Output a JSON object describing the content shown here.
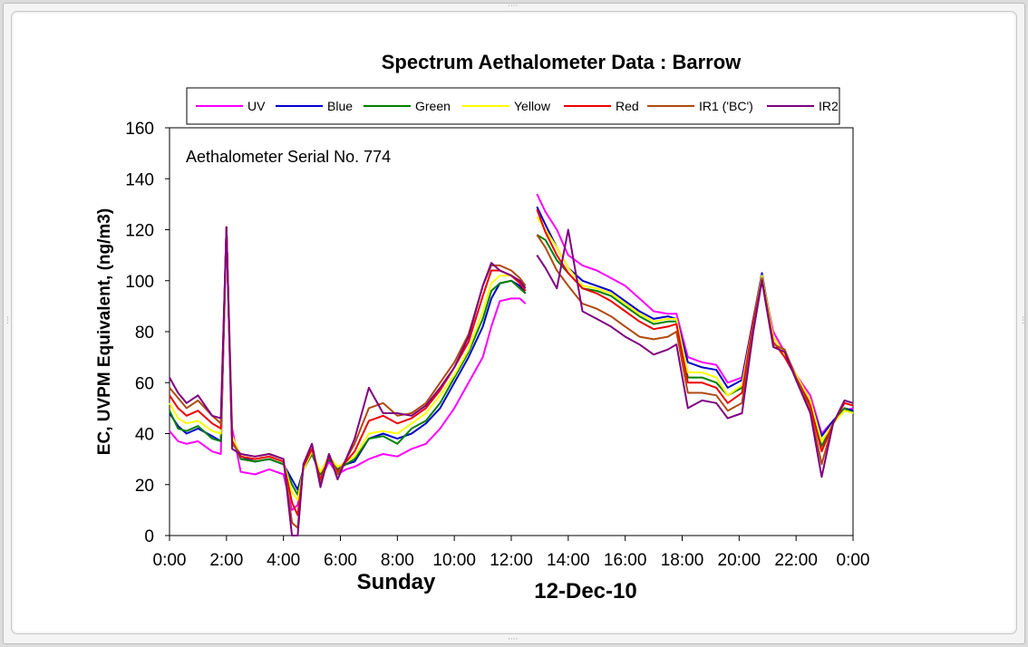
{
  "chart_data": {
    "type": "line",
    "title": "Spectrum Aethalometer Data  :  Barrow",
    "ylabel": "EC, UVPM Equivalent, (ng/m3)",
    "xlabel_day": "Sunday",
    "xlabel_date": "12-Dec-10",
    "annotation": "Aethalometer  Serial No. 774",
    "ylim": [
      0,
      160
    ],
    "yticks": [
      "0",
      "20",
      "40",
      "60",
      "80",
      "100",
      "120",
      "140",
      "160"
    ],
    "xlim": [
      0,
      24
    ],
    "xticks": [
      "0:00",
      "2:00",
      "4:00",
      "6:00",
      "8:00",
      "10:00",
      "12:00",
      "14:00",
      "16:00",
      "18:00",
      "20:00",
      "22:00",
      "0:00"
    ],
    "legend_position": "top",
    "x": [
      0,
      0.3,
      0.6,
      1.0,
      1.5,
      1.8,
      2.0,
      2.2,
      2.5,
      3.0,
      3.5,
      4.0,
      4.3,
      4.5,
      4.7,
      5.0,
      5.3,
      5.6,
      5.9,
      6.2,
      6.5,
      7.0,
      7.5,
      8.0,
      8.5,
      9.0,
      9.5,
      10.0,
      10.5,
      11.0,
      11.3,
      11.6,
      12.0,
      12.3,
      12.5,
      null,
      12.9,
      13.2,
      13.6,
      14.0,
      14.5,
      15.0,
      15.5,
      16.0,
      16.5,
      17.0,
      17.5,
      17.8,
      18.2,
      18.7,
      19.2,
      19.6,
      20.1,
      20.5,
      20.8,
      21.2,
      21.6,
      22.0,
      22.5,
      22.9,
      23.3,
      23.7,
      24.0
    ],
    "series": [
      {
        "name": "UV",
        "color": "#ff00ff",
        "values": [
          41,
          37,
          36,
          37,
          33,
          32,
          121,
          42,
          25,
          24,
          26,
          24,
          10,
          12,
          27,
          33,
          22,
          29,
          24,
          26,
          27,
          30,
          32,
          31,
          34,
          36,
          42,
          50,
          60,
          70,
          82,
          92,
          93,
          93,
          91,
          null,
          134,
          127,
          120,
          110,
          106,
          104,
          101,
          98,
          93,
          88,
          87,
          87,
          70,
          68,
          67,
          60,
          62,
          85,
          101,
          80,
          72,
          63,
          55,
          40,
          45,
          49,
          50
        ]
      },
      {
        "name": "Blue",
        "color": "#0000cc",
        "values": [
          48,
          43,
          40,
          42,
          39,
          37,
          121,
          38,
          31,
          29,
          30,
          28,
          22,
          18,
          26,
          32,
          24,
          30,
          26,
          28,
          29,
          38,
          40,
          38,
          40,
          44,
          50,
          60,
          70,
          82,
          93,
          99,
          100,
          98,
          95,
          null,
          129,
          122,
          113,
          105,
          100,
          98,
          96,
          92,
          88,
          85,
          86,
          85,
          68,
          66,
          65,
          58,
          61,
          85,
          103,
          78,
          71,
          63,
          53,
          39,
          45,
          50,
          49
        ]
      },
      {
        "name": "Green",
        "color": "#008000",
        "values": [
          49,
          42,
          41,
          43,
          38,
          37,
          121,
          38,
          30,
          29,
          30,
          28,
          20,
          16,
          26,
          32,
          24,
          30,
          26,
          28,
          30,
          38,
          39,
          36,
          42,
          45,
          52,
          62,
          72,
          85,
          96,
          99,
          100,
          97,
          95,
          null,
          118,
          116,
          108,
          103,
          97,
          96,
          94,
          90,
          86,
          83,
          84,
          84,
          62,
          62,
          60,
          55,
          58,
          84,
          102,
          78,
          71,
          62,
          52,
          35,
          44,
          50,
          48
        ]
      },
      {
        "name": "Yellow",
        "color": "#ffff00",
        "values": [
          52,
          46,
          44,
          45,
          41,
          40,
          121,
          39,
          31,
          30,
          31,
          29,
          17,
          14,
          26,
          33,
          25,
          31,
          27,
          29,
          31,
          40,
          41,
          40,
          44,
          48,
          55,
          63,
          73,
          88,
          99,
          102,
          102,
          100,
          97,
          null,
          125,
          120,
          113,
          105,
          98,
          97,
          95,
          91,
          87,
          84,
          85,
          85,
          64,
          64,
          62,
          55,
          59,
          84,
          102,
          78,
          71,
          63,
          53,
          37,
          44,
          49,
          48
        ]
      },
      {
        "name": "Red",
        "color": "#ee0000",
        "values": [
          55,
          50,
          47,
          49,
          44,
          42,
          121,
          37,
          31,
          30,
          31,
          29,
          13,
          8,
          27,
          34,
          22,
          31,
          25,
          29,
          33,
          45,
          47,
          44,
          46,
          50,
          57,
          66,
          76,
          94,
          104,
          104,
          102,
          99,
          96,
          null,
          128,
          119,
          110,
          103,
          97,
          95,
          92,
          88,
          84,
          81,
          82,
          83,
          60,
          60,
          58,
          52,
          56,
          84,
          101,
          76,
          70,
          62,
          51,
          33,
          44,
          52,
          51
        ]
      },
      {
        "name": "IR1 ('BC')",
        "color": "#b04a0f",
        "values": [
          58,
          54,
          50,
          53,
          47,
          44,
          121,
          36,
          32,
          31,
          32,
          30,
          5,
          3,
          28,
          36,
          20,
          32,
          24,
          30,
          36,
          50,
          52,
          47,
          48,
          52,
          60,
          68,
          79,
          98,
          106,
          106,
          104,
          101,
          98,
          null,
          118,
          113,
          104,
          98,
          91,
          89,
          86,
          82,
          78,
          77,
          78,
          80,
          56,
          56,
          55,
          49,
          52,
          82,
          101,
          75,
          73,
          62,
          49,
          28,
          44,
          53,
          52
        ]
      },
      {
        "name": "IR2",
        "color": "#800080",
        "values": [
          62,
          56,
          52,
          55,
          47,
          46,
          121,
          34,
          32,
          31,
          32,
          30,
          0,
          0,
          28,
          36,
          19,
          32,
          22,
          30,
          38,
          58,
          48,
          48,
          47,
          51,
          58,
          66,
          78,
          98,
          107,
          104,
          102,
          100,
          97,
          null,
          110,
          105,
          97,
          120,
          88,
          85,
          82,
          78,
          75,
          71,
          73,
          75,
          50,
          53,
          52,
          46,
          48,
          80,
          100,
          74,
          72,
          61,
          48,
          23,
          44,
          53,
          52
        ]
      }
    ]
  }
}
